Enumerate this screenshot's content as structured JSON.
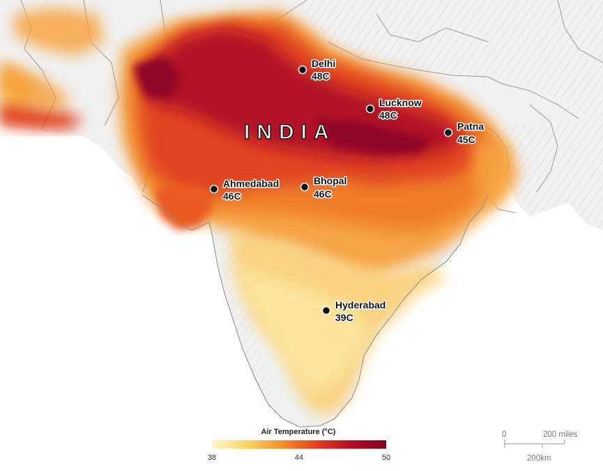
{
  "country": "INDIA",
  "cities": [
    {
      "name": "Delhi",
      "temp": "48C"
    },
    {
      "name": "Lucknow",
      "temp": "48C"
    },
    {
      "name": "Patna",
      "temp": "45C"
    },
    {
      "name": "Ahmedabad",
      "temp": "46C"
    },
    {
      "name": "Bhopal",
      "temp": "46C"
    },
    {
      "name": "Hyderabad",
      "temp": "39C"
    }
  ],
  "legend": {
    "title": "Air Temperature (°C)",
    "ticks": [
      "38",
      "44",
      "50"
    ],
    "colors": [
      "#fff6c8",
      "#fbd46a",
      "#f3902f",
      "#e0401c",
      "#b10f22",
      "#850021"
    ]
  },
  "scale": {
    "zero": "0",
    "miles": "200 miles",
    "km": "200km"
  },
  "colors": {
    "land": "#f2f2f2",
    "water": "#ffffff",
    "hot": "#9c0a22",
    "warm": "#e3421c",
    "mild": "#f59a2e",
    "cool": "#fde7a0"
  }
}
